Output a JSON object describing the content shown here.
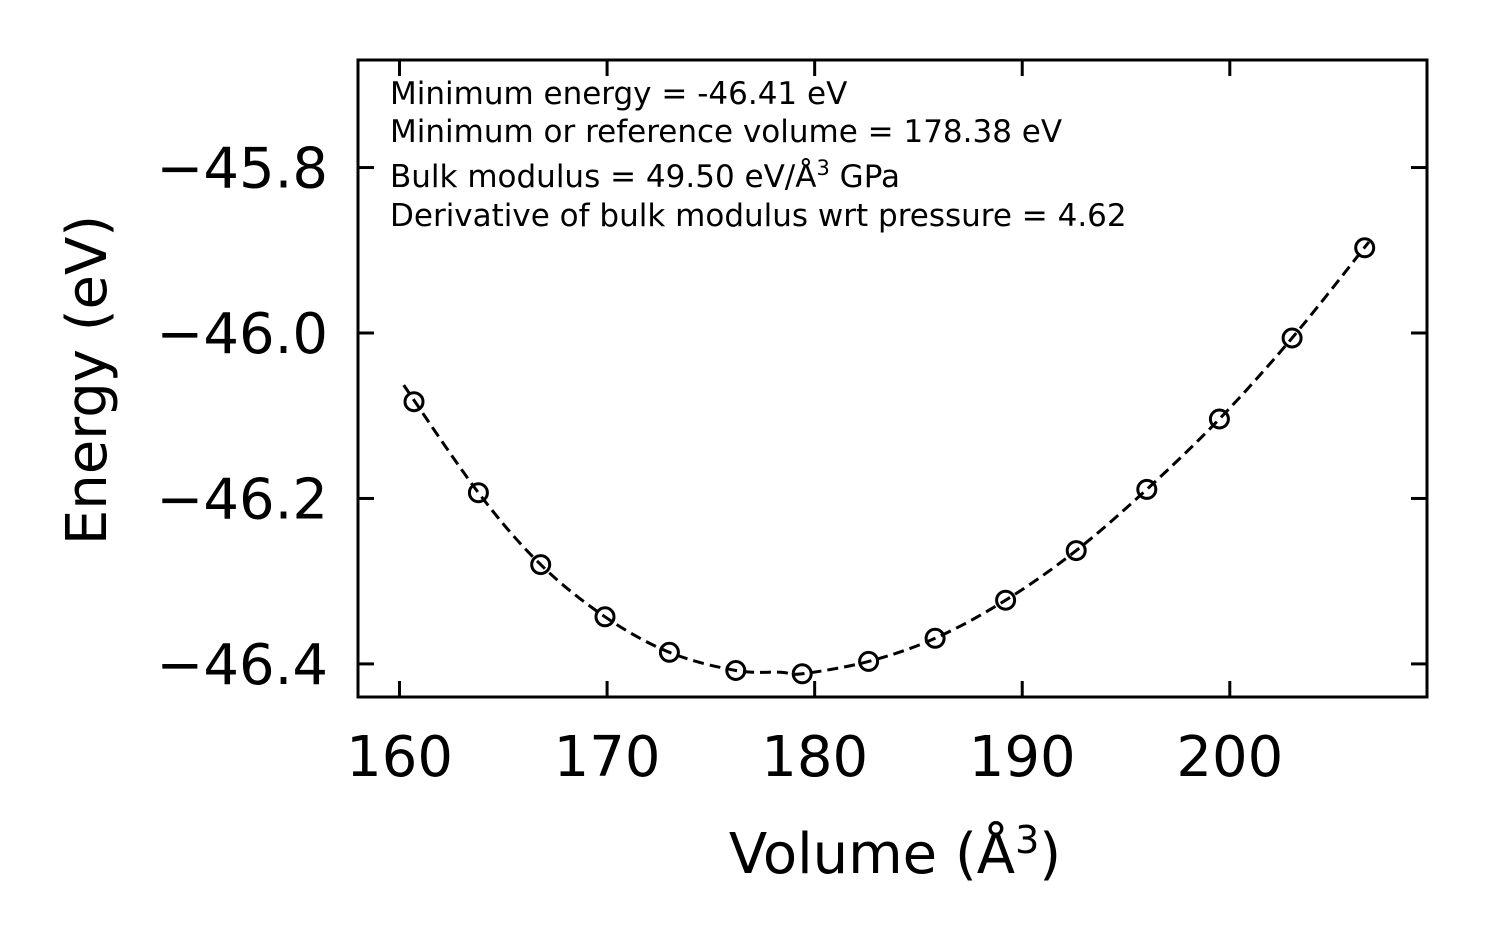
{
  "chart_data": {
    "type": "scatter",
    "title": "",
    "xlabel": "Volume (Å",
    "xlabel_sup": "3",
    "xlabel_close": ")",
    "ylabel": "Energy (eV)",
    "xlim": [
      158,
      209.5
    ],
    "ylim": [
      -46.44,
      -45.67
    ],
    "xticks": [
      160,
      170,
      180,
      190,
      200
    ],
    "xtick_labels": [
      "160",
      "170",
      "180",
      "190",
      "200"
    ],
    "yticks": [
      -45.8,
      -46.0,
      -46.2,
      -46.4
    ],
    "ytick_labels": [
      "−45.8",
      "−46.0",
      "−46.2",
      "−46.4"
    ],
    "annotations": [
      "Minimum energy = -46.41 eV",
      "Minimum or reference volume = 178.38 eV",
      "Bulk modulus = 49.50 eV/Å",
      "3",
      " GPa",
      "Derivative of bulk modulus wrt pressure = 4.62"
    ],
    "series": [
      {
        "name": "data",
        "style": "open-circle",
        "x": [
          160.7,
          163.8,
          166.8,
          169.9,
          173.0,
          176.2,
          179.4,
          182.6,
          185.8,
          189.2,
          192.6,
          196.0,
          199.5,
          203.0,
          206.5
        ],
        "y": [
          -46.083,
          -46.193,
          -46.28,
          -46.343,
          -46.386,
          -46.408,
          -46.412,
          -46.397,
          -46.369,
          -46.323,
          -46.263,
          -46.189,
          -46.104,
          -46.006,
          -45.897
        ]
      },
      {
        "name": "fit",
        "style": "dashed-line",
        "x": [
          160.2,
          163.8,
          166.8,
          169.9,
          173.0,
          176.2,
          178.38,
          179.4,
          182.6,
          185.8,
          189.2,
          192.6,
          196.0,
          199.5,
          203.0,
          206.7
        ],
        "y": [
          -46.063,
          -46.193,
          -46.28,
          -46.343,
          -46.386,
          -46.408,
          -46.41,
          -46.412,
          -46.397,
          -46.369,
          -46.323,
          -46.263,
          -46.189,
          -46.104,
          -46.006,
          -45.89
        ]
      }
    ],
    "grid": false,
    "legend": "none"
  }
}
